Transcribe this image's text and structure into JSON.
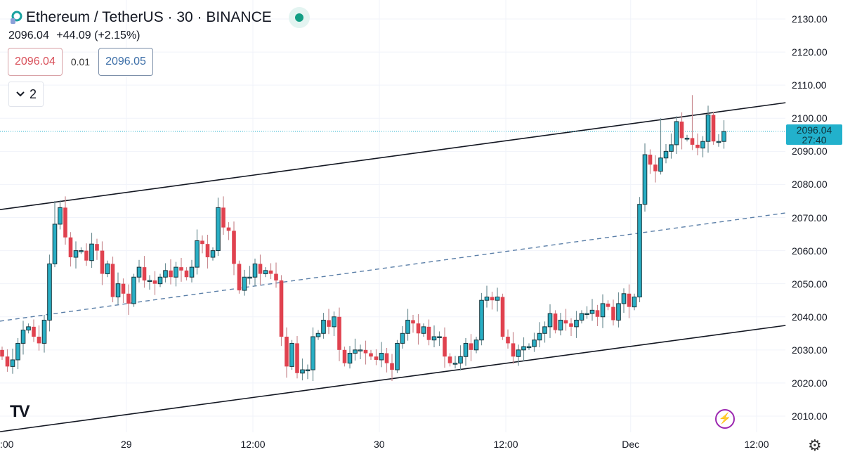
{
  "header": {
    "symbol_title": "Ethereum / TetherUS · 30 · BINANCE",
    "last_price": "2096.04",
    "change": "+44.09 (+2.15%)",
    "bid": "2096.04",
    "spread": "0.01",
    "ask": "2096.05",
    "indicators_collapsed_count": "2"
  },
  "price_tag": {
    "price": "2096.04",
    "countdown": "27:40"
  },
  "icons": {
    "coin": "ethereum-coin-icon",
    "live": "market-open-dot-icon",
    "collapse": "chevron-down-icon",
    "logo": "tradingview-logo",
    "bolt": "lightning-icon",
    "settings": "gear-icon"
  },
  "logo_text": "TV",
  "colors": {
    "bull": "#29aec4",
    "bear": "#e0424f",
    "price_tag": "#22b1cc",
    "channel": "#131722",
    "midline": "#5b7fa8"
  },
  "chart_data": {
    "type": "candlestick",
    "title": "Ethereum / TetherUS · 30 · BINANCE",
    "interval_minutes": 30,
    "ylim": [
      2005,
      2135
    ],
    "y_ticks": [
      "2130.00",
      "2120.00",
      "2110.00",
      "2100.00",
      "2090.00",
      "2080.00",
      "2070.00",
      "2060.00",
      "2050.00",
      "2040.00",
      "2030.00",
      "2020.00",
      "2010.00"
    ],
    "x_ticks": [
      {
        "label": ":00",
        "index": -0.4
      },
      {
        "label": "29",
        "index": 23.6
      },
      {
        "label": "12:00",
        "index": 47.6
      },
      {
        "label": "30",
        "index": 71.6
      },
      {
        "label": "12:00",
        "index": 95.6
      },
      {
        "label": "Dec",
        "index": 119.3
      },
      {
        "label": "12:00",
        "index": 143.2
      }
    ],
    "first_open": 2030,
    "close": [
      2028,
      2025,
      2027,
      2032,
      2036,
      2037,
      2034,
      2032,
      2039,
      2056,
      2068,
      2073,
      2064,
      2058,
      2060,
      2060,
      2057,
      2062,
      2060,
      2053,
      2056,
      2046,
      2050,
      2047,
      2044,
      2052,
      2055,
      2051,
      2051,
      2050,
      2052,
      2054,
      2052,
      2055,
      2054,
      2052,
      2055,
      2063,
      2062,
      2058,
      2060,
      2073,
      2067,
      2066,
      2056,
      2048,
      2052,
      2052,
      2056,
      2053,
      2054,
      2053,
      2051,
      2034,
      2025,
      2032,
      2023,
      2024,
      2024,
      2034,
      2035,
      2039,
      2037,
      2040,
      2030,
      2026,
      2029,
      2030,
      2030,
      2029,
      2028,
      2027,
      2029,
      2026,
      2024,
      2032,
      2035,
      2039,
      2038,
      2035,
      2037,
      2033,
      2034,
      2034,
      2028,
      2026,
      2026,
      2028,
      2032,
      2030,
      2033,
      2045,
      2046,
      2045,
      2046,
      2034,
      2032,
      2028,
      2030,
      2031,
      2031,
      2033,
      2035,
      2037,
      2041,
      2036,
      2039,
      2038,
      2037,
      2039,
      2041,
      2041,
      2042,
      2040,
      2044,
      2043,
      2039,
      2044,
      2047,
      2043,
      2046,
      2074,
      2089,
      2086,
      2084,
      2088,
      2090,
      2092,
      2099,
      2094,
      2094,
      2092,
      2091,
      2093,
      2101,
      2093,
      2093,
      2096
    ],
    "notable_highs": [
      {
        "index": 10,
        "high": 2075
      },
      {
        "index": 41,
        "high": 2076
      },
      {
        "index": 131,
        "high": 2107
      },
      {
        "index": 125,
        "high": 2100
      }
    ],
    "last_price": 2096.04,
    "channel": {
      "upper": [
        [
          -0.4,
          2072.4
        ],
        [
          148.7,
          2104.7
        ]
      ],
      "lower": [
        [
          -0.4,
          2005.3
        ],
        [
          148.7,
          2037.4
        ]
      ],
      "middle_dashed": [
        [
          -0.4,
          2038.7
        ],
        [
          148.7,
          2071.4
        ]
      ]
    }
  }
}
